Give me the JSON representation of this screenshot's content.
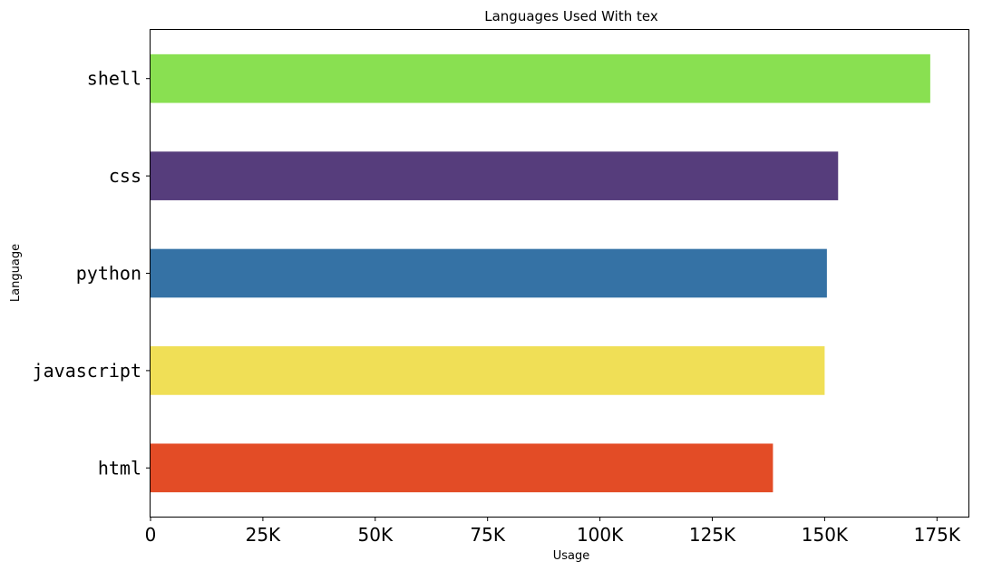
{
  "chart_data": {
    "type": "bar",
    "orientation": "horizontal",
    "title": "Languages Used With tex",
    "xlabel": "Usage",
    "ylabel": "Language",
    "categories": [
      "html",
      "javascript",
      "python",
      "css",
      "shell"
    ],
    "values": [
      138500,
      150000,
      150500,
      153000,
      173500
    ],
    "colors": [
      "#e34c26",
      "#f0df56",
      "#3572a5",
      "#563d7c",
      "#89e051"
    ],
    "xlim": [
      0,
      182000
    ],
    "xticks": [
      0,
      25000,
      50000,
      75000,
      100000,
      125000,
      150000,
      175000
    ],
    "xtick_labels": [
      "0",
      "25K",
      "50K",
      "75K",
      "100K",
      "125K",
      "150K",
      "175K"
    ],
    "grid": false,
    "legend": "none"
  }
}
